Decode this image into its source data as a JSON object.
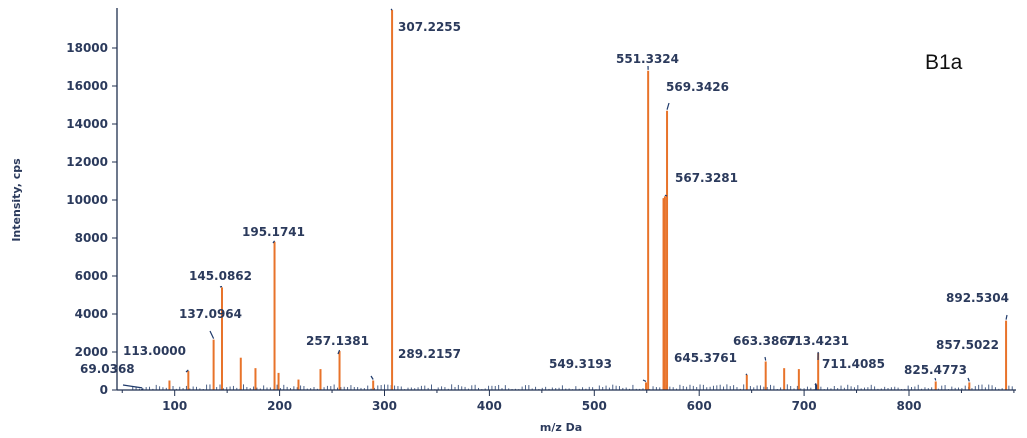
{
  "chart_data": {
    "type": "bar",
    "panel_label": "B1a",
    "xlabel": "m/z Da",
    "ylabel": "Intensity, cps",
    "xlim": [
      45,
      902
    ],
    "ylim": [
      0,
      20000
    ],
    "x_ticks": [
      100,
      200,
      300,
      400,
      500,
      600,
      700,
      800
    ],
    "y_ticks": [
      0,
      2000,
      4000,
      6000,
      8000,
      10000,
      12000,
      14000,
      16000,
      18000
    ],
    "colors": {
      "major": "#e8732a",
      "minor": "#1f3a6b",
      "text": "#2b3a5c",
      "axis": "#1f2f4f"
    },
    "peaks": [
      {
        "x": 69.0368,
        "y": 60,
        "label": "69.0368"
      },
      {
        "x": 95,
        "y": 500
      },
      {
        "x": 113.0,
        "y": 1000,
        "label": "113.0000"
      },
      {
        "x": 137.0964,
        "y": 2650,
        "label": "137.0964"
      },
      {
        "x": 145.0862,
        "y": 5400,
        "label": "145.0862"
      },
      {
        "x": 163,
        "y": 1700
      },
      {
        "x": 177,
        "y": 1150
      },
      {
        "x": 195.1741,
        "y": 7800,
        "label": "195.1741"
      },
      {
        "x": 199,
        "y": 900
      },
      {
        "x": 218,
        "y": 550
      },
      {
        "x": 239,
        "y": 1100
      },
      {
        "x": 257.1381,
        "y": 2050,
        "label": "257.1381"
      },
      {
        "x": 289.2157,
        "y": 500,
        "label": "289.2157"
      },
      {
        "x": 307.2255,
        "y": 20000,
        "label": "307.2255"
      },
      {
        "x": 549.3193,
        "y": 400,
        "label": "549.3193"
      },
      {
        "x": 551.3324,
        "y": 16800,
        "label": "551.3324"
      },
      {
        "x": 566,
        "y": 10100
      },
      {
        "x": 567.3281,
        "y": 10200,
        "label": "567.3281"
      },
      {
        "x": 569.3426,
        "y": 14700,
        "label": "569.3426"
      },
      {
        "x": 645.3761,
        "y": 800,
        "label": "645.3761"
      },
      {
        "x": 663.3867,
        "y": 1500,
        "label": "663.3867"
      },
      {
        "x": 681,
        "y": 1150
      },
      {
        "x": 695,
        "y": 1100
      },
      {
        "x": 711.4085,
        "y": 300,
        "label": "711.4085"
      },
      {
        "x": 713.4231,
        "y": 1950,
        "label": "713.4231"
      },
      {
        "x": 825.4773,
        "y": 450,
        "label": "825.4773"
      },
      {
        "x": 857.5022,
        "y": 400,
        "label": "857.5022"
      },
      {
        "x": 892.5304,
        "y": 3650,
        "label": "892.5304"
      }
    ]
  }
}
